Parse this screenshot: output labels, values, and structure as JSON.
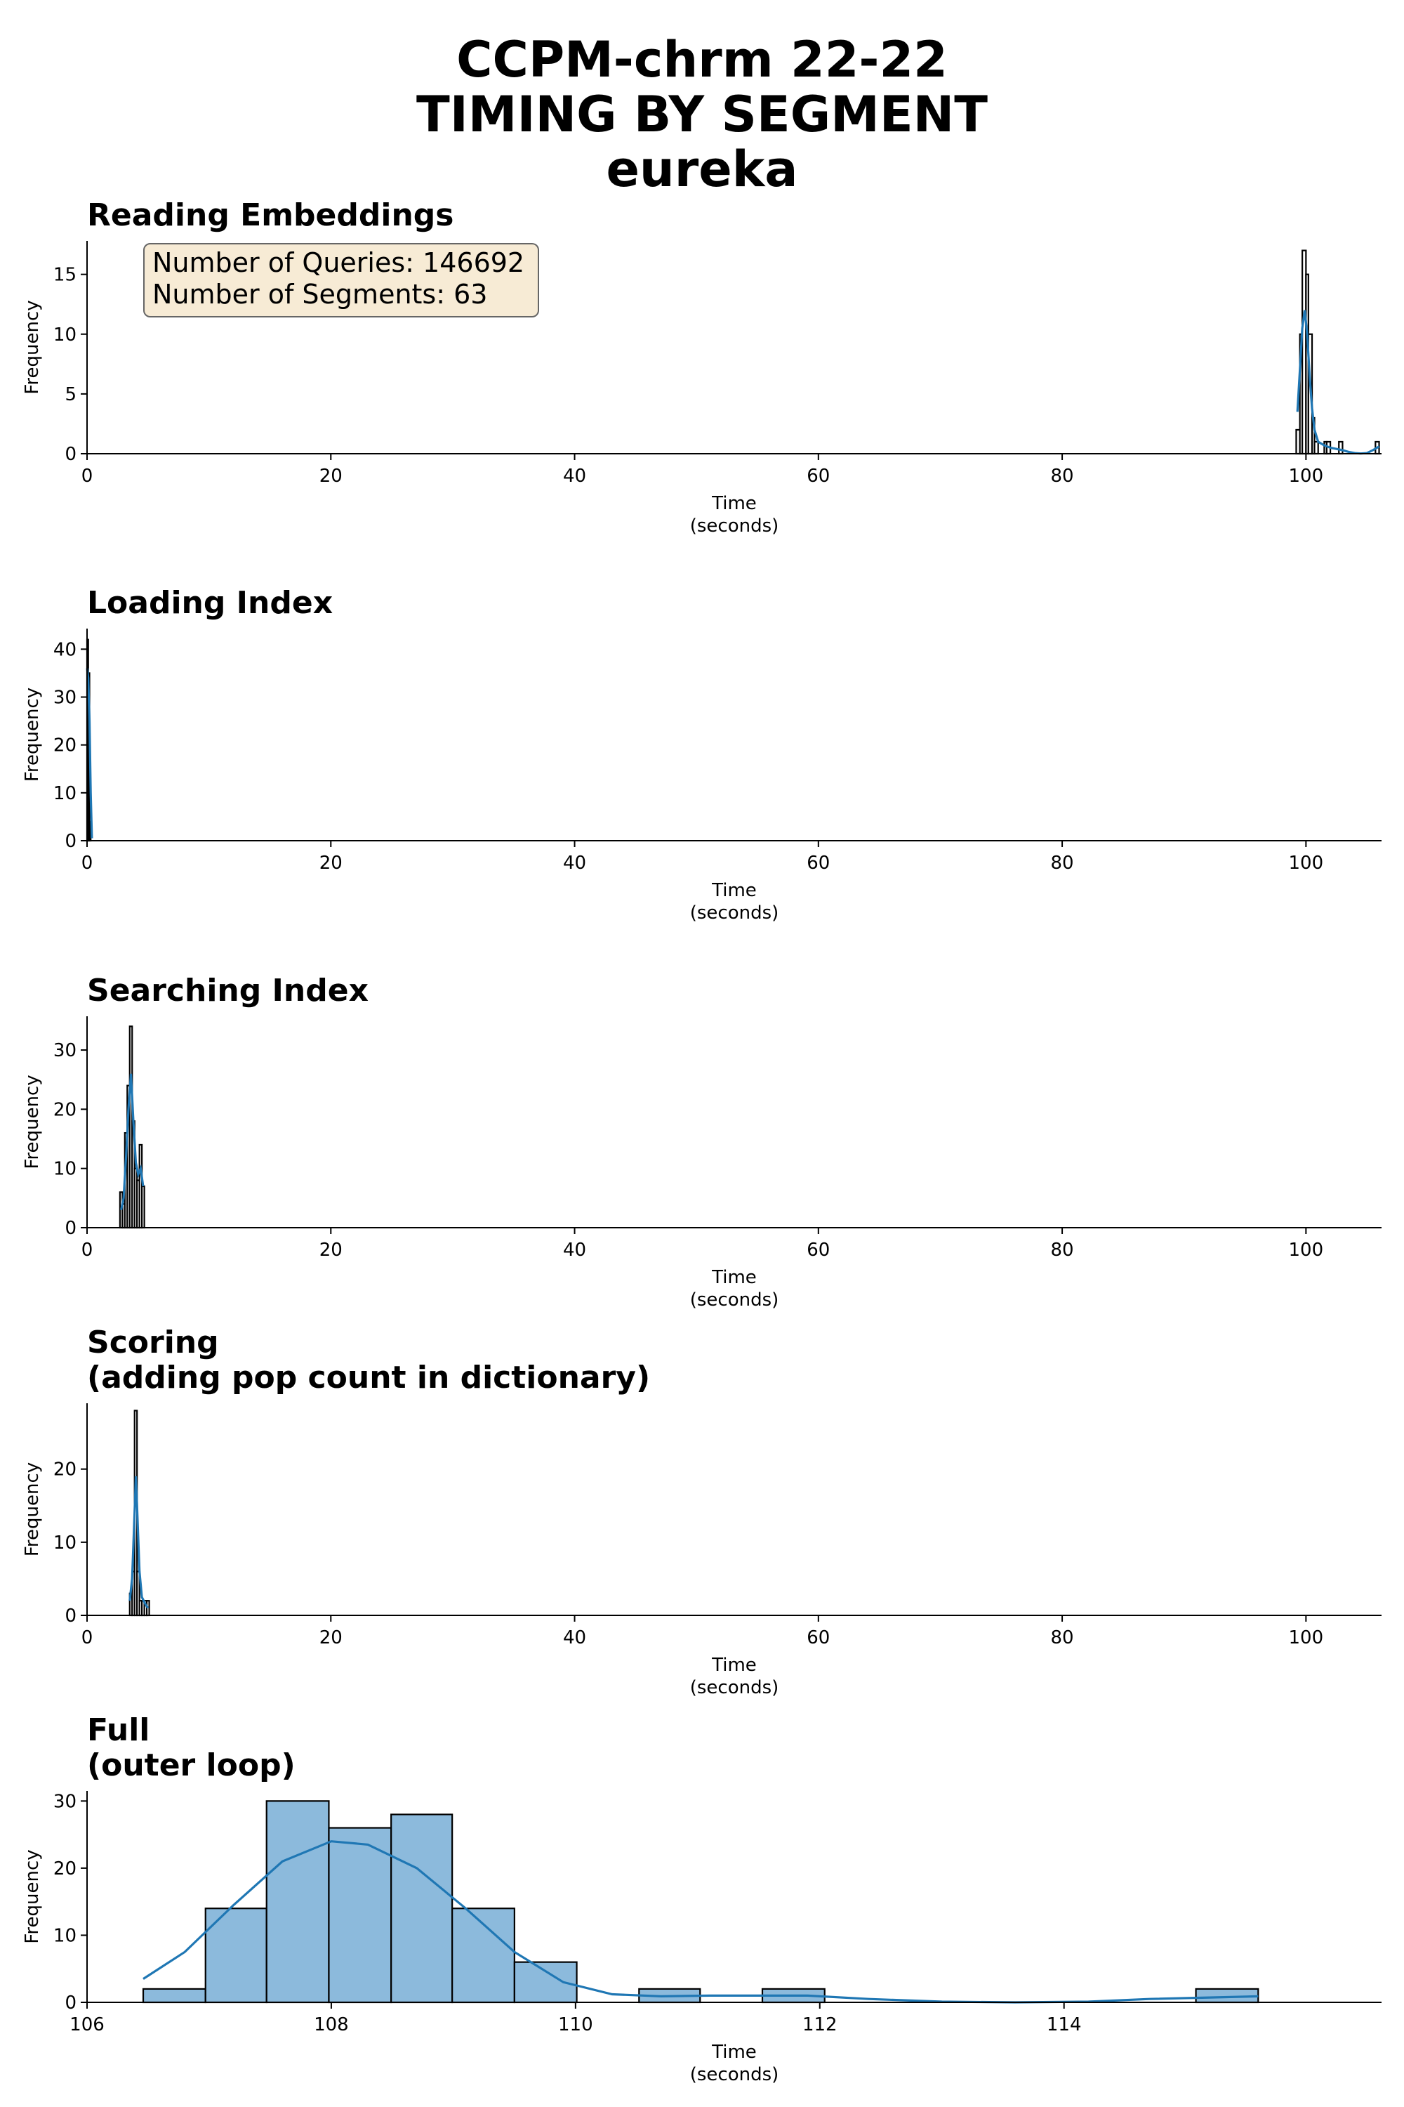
{
  "figure": {
    "title_lines": [
      "CCPM-chrm 22-22",
      "TIMING BY SEGMENT",
      "eureka"
    ]
  },
  "chart_data": [
    {
      "type": "histogram",
      "title": [
        "Reading Embeddings"
      ],
      "xlabel": [
        "Time",
        "(seconds)"
      ],
      "ylabel": "Frequency",
      "xlim": [
        0,
        106.2
      ],
      "ylim": [
        0,
        17.8
      ],
      "xticks": [
        0,
        20,
        40,
        60,
        80,
        100
      ],
      "yticks": [
        0,
        5,
        10,
        15
      ],
      "bars_color": "#ffffff",
      "kde_color": "#1f77b4",
      "annotation": [
        "Number of Queries: 146692",
        "Number of Segments: 63"
      ],
      "bins": [
        {
          "x0": 99.2,
          "x1": 99.5,
          "count": 2
        },
        {
          "x0": 99.5,
          "x1": 99.7,
          "count": 10
        },
        {
          "x0": 99.7,
          "x1": 100.0,
          "count": 17
        },
        {
          "x0": 100.0,
          "x1": 100.2,
          "count": 15
        },
        {
          "x0": 100.2,
          "x1": 100.5,
          "count": 10
        },
        {
          "x0": 100.5,
          "x1": 100.7,
          "count": 3
        },
        {
          "x0": 100.7,
          "x1": 101.0,
          "count": 1
        },
        {
          "x0": 101.5,
          "x1": 101.7,
          "count": 1
        },
        {
          "x0": 101.7,
          "x1": 102.0,
          "count": 1
        },
        {
          "x0": 102.7,
          "x1": 103.0,
          "count": 1
        },
        {
          "x0": 105.7,
          "x1": 106.0,
          "count": 1
        }
      ],
      "kde": [
        [
          99.3,
          3.5
        ],
        [
          99.5,
          7
        ],
        [
          99.7,
          10.5
        ],
        [
          99.9,
          12
        ],
        [
          100.1,
          10
        ],
        [
          100.3,
          6.5
        ],
        [
          100.5,
          3.8
        ],
        [
          100.7,
          2
        ],
        [
          101.0,
          1
        ],
        [
          101.5,
          0.7
        ],
        [
          102.0,
          0.5
        ],
        [
          102.5,
          0.4
        ],
        [
          103.0,
          0.3
        ],
        [
          103.5,
          0.15
        ],
        [
          104.0,
          0.05
        ],
        [
          104.5,
          0.02
        ],
        [
          105.0,
          0.05
        ],
        [
          105.5,
          0.3
        ],
        [
          106.0,
          0.6
        ]
      ]
    },
    {
      "type": "histogram",
      "title": [
        "Loading Index"
      ],
      "xlabel": [
        "Time",
        "(seconds)"
      ],
      "ylabel": "Frequency",
      "xlim": [
        0,
        106.2
      ],
      "ylim": [
        0,
        44.3
      ],
      "xticks": [
        0,
        20,
        40,
        60,
        80,
        100
      ],
      "yticks": [
        0,
        10,
        20,
        30,
        40
      ],
      "bars_color": "#ffffff",
      "kde_color": "#1f77b4",
      "bins": [
        {
          "x0": 0.0,
          "x1": 0.1,
          "count": 42
        },
        {
          "x0": 0.1,
          "x1": 0.2,
          "count": 35
        },
        {
          "x0": 0.2,
          "x1": 0.3,
          "count": 4
        }
      ],
      "kde": [
        [
          0.0,
          36
        ],
        [
          0.1,
          34
        ],
        [
          0.2,
          25
        ],
        [
          0.3,
          10
        ],
        [
          0.4,
          0.5
        ]
      ]
    },
    {
      "type": "histogram",
      "title": [
        "Searching Index"
      ],
      "xlabel": [
        "Time",
        "(seconds)"
      ],
      "ylabel": "Frequency",
      "xlim": [
        0,
        106.2
      ],
      "ylim": [
        0,
        35.7
      ],
      "xticks": [
        0,
        20,
        40,
        60,
        80,
        100
      ],
      "yticks": [
        0,
        10,
        20,
        30
      ],
      "bars_color": "#ffffff",
      "kde_color": "#1f77b4",
      "bins": [
        {
          "x0": 2.7,
          "x1": 2.9,
          "count": 6
        },
        {
          "x0": 2.9,
          "x1": 3.1,
          "count": 4
        },
        {
          "x0": 3.1,
          "x1": 3.3,
          "count": 16
        },
        {
          "x0": 3.3,
          "x1": 3.5,
          "count": 24
        },
        {
          "x0": 3.5,
          "x1": 3.7,
          "count": 34
        },
        {
          "x0": 3.7,
          "x1": 3.9,
          "count": 18
        },
        {
          "x0": 3.9,
          "x1": 4.1,
          "count": 10
        },
        {
          "x0": 4.1,
          "x1": 4.3,
          "count": 8
        },
        {
          "x0": 4.3,
          "x1": 4.5,
          "count": 14
        },
        {
          "x0": 4.5,
          "x1": 4.7,
          "count": 7
        }
      ],
      "kde": [
        [
          2.8,
          3
        ],
        [
          3.0,
          5
        ],
        [
          3.2,
          12
        ],
        [
          3.4,
          20
        ],
        [
          3.6,
          26
        ],
        [
          3.8,
          18
        ],
        [
          4.0,
          11
        ],
        [
          4.2,
          9
        ],
        [
          4.4,
          10
        ],
        [
          4.6,
          7
        ]
      ]
    },
    {
      "type": "histogram",
      "title": [
        "Scoring",
        "(adding pop count in dictionary)"
      ],
      "xlabel": [
        "Time",
        "(seconds)"
      ],
      "ylabel": "Frequency",
      "xlim": [
        0,
        106.2
      ],
      "ylim": [
        0,
        29.0
      ],
      "xticks": [
        0,
        20,
        40,
        60,
        80,
        100
      ],
      "yticks": [
        0,
        10,
        20
      ],
      "bars_color": "#ffffff",
      "kde_color": "#1f77b4",
      "bins": [
        {
          "x0": 3.5,
          "x1": 3.7,
          "count": 3
        },
        {
          "x0": 3.7,
          "x1": 3.9,
          "count": 6
        },
        {
          "x0": 3.9,
          "x1": 4.1,
          "count": 28
        },
        {
          "x0": 4.1,
          "x1": 4.3,
          "count": 6
        },
        {
          "x0": 4.3,
          "x1": 4.5,
          "count": 2
        },
        {
          "x0": 4.5,
          "x1": 4.7,
          "count": 2
        },
        {
          "x0": 4.7,
          "x1": 4.9,
          "count": 2
        },
        {
          "x0": 4.9,
          "x1": 5.1,
          "count": 2
        }
      ],
      "kde": [
        [
          3.5,
          2
        ],
        [
          3.7,
          5
        ],
        [
          3.9,
          14
        ],
        [
          4.0,
          19
        ],
        [
          4.1,
          15
        ],
        [
          4.3,
          6
        ],
        [
          4.5,
          2.5
        ],
        [
          4.8,
          1.5
        ],
        [
          5.0,
          1
        ]
      ]
    },
    {
      "type": "histogram",
      "title": [
        "Full",
        "(outer loop)"
      ],
      "xlabel": [
        "Time",
        "(seconds)"
      ],
      "ylabel": "Frequency",
      "xlim": [
        106.0,
        116.6
      ],
      "ylim": [
        0,
        31.5
      ],
      "xticks": [
        106,
        108,
        110,
        112,
        114
      ],
      "yticks": [
        0,
        10,
        20,
        30
      ],
      "bars_color": "#8cbadc",
      "kde_color": "#1f77b4",
      "bins": [
        {
          "x0": 106.46,
          "x1": 106.97,
          "count": 2
        },
        {
          "x0": 106.97,
          "x1": 107.47,
          "count": 14
        },
        {
          "x0": 107.47,
          "x1": 107.98,
          "count": 30
        },
        {
          "x0": 107.98,
          "x1": 108.49,
          "count": 26
        },
        {
          "x0": 108.49,
          "x1": 108.99,
          "count": 28
        },
        {
          "x0": 108.99,
          "x1": 109.5,
          "count": 14
        },
        {
          "x0": 109.5,
          "x1": 110.01,
          "count": 6
        },
        {
          "x0": 110.52,
          "x1": 111.02,
          "count": 2
        },
        {
          "x0": 111.53,
          "x1": 112.04,
          "count": 2
        },
        {
          "x0": 115.08,
          "x1": 115.59,
          "count": 2
        }
      ],
      "kde": [
        [
          106.46,
          3.5
        ],
        [
          106.8,
          7.5
        ],
        [
          107.2,
          14.5
        ],
        [
          107.6,
          21
        ],
        [
          108.0,
          24
        ],
        [
          108.3,
          23.5
        ],
        [
          108.7,
          20
        ],
        [
          109.1,
          14
        ],
        [
          109.5,
          7.5
        ],
        [
          109.9,
          3
        ],
        [
          110.3,
          1.2
        ],
        [
          110.7,
          0.9
        ],
        [
          111.1,
          1.0
        ],
        [
          111.5,
          1.0
        ],
        [
          111.9,
          1.0
        ],
        [
          112.4,
          0.5
        ],
        [
          113.0,
          0.1
        ],
        [
          113.6,
          0.0
        ],
        [
          114.2,
          0.1
        ],
        [
          114.7,
          0.5
        ],
        [
          115.59,
          0.9
        ]
      ]
    }
  ]
}
